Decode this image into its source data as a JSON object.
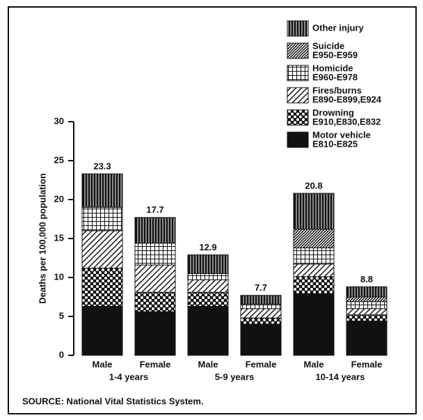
{
  "chart_data": {
    "type": "stacked-bar",
    "y_label": "Deaths per 100,000 population",
    "categories": [
      "Male",
      "Female",
      "Male",
      "Female",
      "Male",
      "Female"
    ],
    "group_labels": [
      "1-4 years",
      "5-9 years",
      "10-14 years"
    ],
    "totals": [
      23.3,
      17.7,
      12.9,
      7.7,
      20.8,
      8.8
    ],
    "series": [
      {
        "name": "Motor vehicle",
        "codes": "E810-E825",
        "color": "#111111",
        "pattern": "solid",
        "values": [
          6.3,
          5.6,
          6.3,
          4.0,
          7.9,
          4.4
        ]
      },
      {
        "name": "Drowning",
        "codes": "E910,E830,E832",
        "color": "#111111",
        "pattern": "checker",
        "values": [
          4.9,
          2.5,
          1.8,
          0.8,
          2.2,
          0.8
        ]
      },
      {
        "name": "Fires/burns",
        "codes": "E890-E899,E924",
        "color": "#111111",
        "pattern": "diagonal",
        "values": [
          4.8,
          3.5,
          1.6,
          1.2,
          1.6,
          0.8
        ]
      },
      {
        "name": "Homicide",
        "codes": "E960-E978",
        "color": "#111111",
        "pattern": "grid",
        "values": [
          3.0,
          2.8,
          0.8,
          0.6,
          2.1,
          0.9
        ]
      },
      {
        "name": "Suicide",
        "codes": "E950-E959",
        "color": "#111111",
        "pattern": "dense-diagonal",
        "values": [
          0,
          0,
          0,
          0,
          2.4,
          0.6
        ]
      },
      {
        "name": "Other injury",
        "color": "#111111",
        "pattern": "vertical",
        "values": [
          4.3,
          3.3,
          2.4,
          1.1,
          4.6,
          1.3
        ]
      }
    ],
    "ylim": [
      0,
      30
    ],
    "yticks": [
      0,
      5,
      10,
      15,
      20,
      25,
      30
    ],
    "source": "SOURCE: National Vital Statistics System."
  }
}
